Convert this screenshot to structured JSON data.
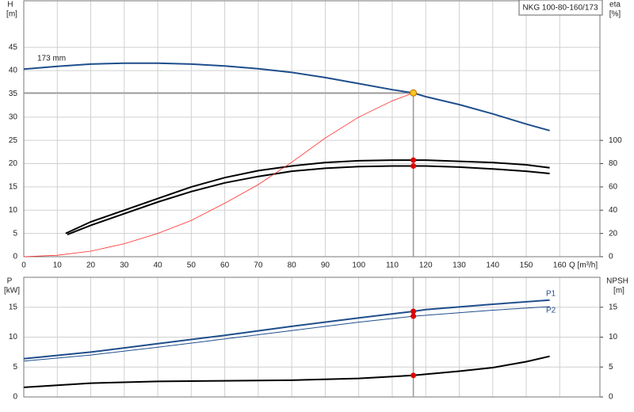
{
  "chart_data": [
    {
      "type": "line",
      "title": "NKG 100-80-160/173",
      "x_label": "Q [m³/h]",
      "y_label": "H",
      "y_unit": "[m]",
      "y2_label": "eta",
      "y2_unit": "[%]",
      "xlim": [
        0,
        172
      ],
      "xticks": [
        0,
        10,
        20,
        30,
        40,
        50,
        60,
        70,
        80,
        90,
        100,
        110,
        120,
        130,
        140,
        150,
        160
      ],
      "ylim": [
        0,
        55
      ],
      "yticks": [
        0,
        5,
        10,
        15,
        20,
        25,
        30,
        35,
        40,
        45
      ],
      "y2lim": [
        0,
        220
      ],
      "y2ticks": [
        0,
        20,
        40,
        60,
        80,
        100
      ],
      "grid": true,
      "operating_point": {
        "x": 116.3,
        "y": 35.2,
        "color": "#f7c51e"
      },
      "series": [
        {
          "name": "173 mm",
          "color": "#1f4e8c",
          "width": 2,
          "x": [
            0,
            10,
            20,
            30,
            40,
            50,
            60,
            70,
            80,
            90,
            100,
            110,
            116.3,
            120,
            130,
            140,
            150,
            157
          ],
          "values": [
            40.3,
            40.9,
            41.4,
            41.6,
            41.6,
            41.4,
            41.0,
            40.4,
            39.6,
            38.5,
            37.2,
            35.9,
            35.2,
            34.4,
            32.7,
            30.7,
            28.5,
            27.1
          ]
        },
        {
          "color": "#000000",
          "width": 2,
          "axis": "y2",
          "marker": "#e00000",
          "x": [
            12.5,
            20,
            30,
            40,
            50,
            60,
            70,
            80,
            90,
            100,
            110,
            116.3,
            120,
            130,
            140,
            150,
            157
          ],
          "values": [
            20,
            30,
            40,
            50,
            60,
            68,
            74,
            78,
            81,
            82.5,
            83,
            83,
            83,
            82,
            81,
            79,
            76.5
          ]
        },
        {
          "color": "#000000",
          "width": 2,
          "axis": "y2",
          "marker": "#e00000",
          "x": [
            13,
            20,
            30,
            40,
            50,
            60,
            70,
            80,
            90,
            100,
            110,
            116.3,
            120,
            130,
            140,
            150,
            157
          ],
          "values": [
            19,
            27,
            37,
            47,
            56,
            63.5,
            69,
            73.5,
            76,
            77.5,
            78,
            78,
            78,
            77,
            75.5,
            73.5,
            71.5
          ]
        },
        {
          "color": "#ff2a2a",
          "width": 0.8,
          "x": [
            0,
            10,
            20,
            30,
            40,
            50,
            60,
            70,
            80,
            90,
            100,
            110,
            116.3
          ],
          "values": [
            0,
            0.3,
            1.2,
            2.8,
            5,
            7.8,
            11.5,
            15.5,
            20.3,
            25.5,
            30,
            33.5,
            35.2
          ]
        }
      ]
    },
    {
      "type": "line",
      "y_label": "P",
      "y_unit": "[kW]",
      "y2_label": "NPSH",
      "y2_unit": "[m]",
      "ylim": [
        0,
        20
      ],
      "yticks": [
        0,
        5,
        10,
        15
      ],
      "y2lim": [
        0,
        20
      ],
      "y2ticks": [
        0,
        5,
        10,
        15
      ],
      "series": [
        {
          "name": "P1",
          "color": "#1f4e8c",
          "width": 2,
          "marker": "#e00000",
          "x": [
            0,
            20,
            40,
            60,
            80,
            100,
            116.3,
            120,
            140,
            157
          ],
          "values": [
            6.4,
            7.5,
            8.9,
            10.3,
            11.8,
            13.2,
            14.3,
            14.6,
            15.5,
            16.2
          ]
        },
        {
          "name": "P2",
          "color": "#1f4e8c",
          "width": 1,
          "marker": "#e00000",
          "x": [
            0,
            20,
            40,
            60,
            80,
            100,
            116.3,
            140,
            157
          ],
          "values": [
            6.0,
            7.0,
            8.3,
            9.7,
            11.1,
            12.5,
            13.5,
            14.5,
            15.1
          ]
        },
        {
          "color": "#000000",
          "width": 2,
          "axis": "y2",
          "marker": "#e00000",
          "x": [
            0,
            20,
            40,
            60,
            80,
            100,
            116.3,
            130,
            140,
            150,
            157
          ],
          "values": [
            1.6,
            2.3,
            2.6,
            2.7,
            2.8,
            3.1,
            3.6,
            4.3,
            4.9,
            5.9,
            6.8
          ]
        }
      ]
    }
  ]
}
